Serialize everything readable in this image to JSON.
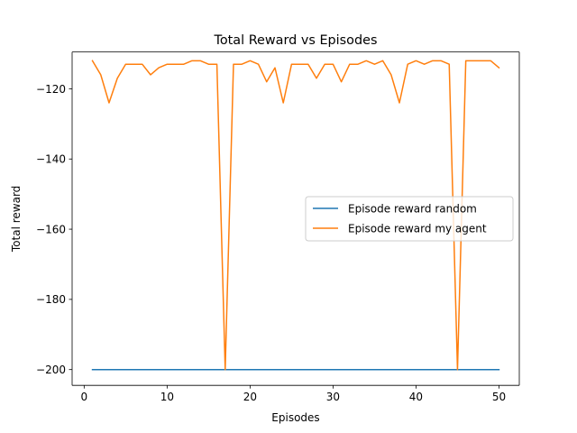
{
  "chart_data": {
    "type": "line",
    "title": "Total Reward vs Episodes",
    "xlabel": "Episodes",
    "ylabel": "Total reward",
    "xlim": [
      -1.45,
      52.45
    ],
    "ylim": [
      -204.5,
      -109.5
    ],
    "xticks": [
      0,
      10,
      20,
      30,
      40,
      50
    ],
    "xtick_labels": [
      "0",
      "10",
      "20",
      "30",
      "40",
      "50"
    ],
    "yticks": [
      -200,
      -180,
      -160,
      -140,
      -120
    ],
    "ytick_labels": [
      "−200",
      "−180",
      "−160",
      "−140",
      "−120"
    ],
    "grid": false,
    "legend_position": "center-right",
    "x": [
      1,
      2,
      3,
      4,
      5,
      6,
      7,
      8,
      9,
      10,
      11,
      12,
      13,
      14,
      15,
      16,
      17,
      18,
      19,
      20,
      21,
      22,
      23,
      24,
      25,
      26,
      27,
      28,
      29,
      30,
      31,
      32,
      33,
      34,
      35,
      36,
      37,
      38,
      39,
      40,
      41,
      42,
      43,
      44,
      45,
      46,
      47,
      48,
      49,
      50
    ],
    "series": [
      {
        "name": "Episode reward random",
        "color": "#1f77b4",
        "values": [
          -200,
          -200,
          -200,
          -200,
          -200,
          -200,
          -200,
          -200,
          -200,
          -200,
          -200,
          -200,
          -200,
          -200,
          -200,
          -200,
          -200,
          -200,
          -200,
          -200,
          -200,
          -200,
          -200,
          -200,
          -200,
          -200,
          -200,
          -200,
          -200,
          -200,
          -200,
          -200,
          -200,
          -200,
          -200,
          -200,
          -200,
          -200,
          -200,
          -200,
          -200,
          -200,
          -200,
          -200,
          -200,
          -200,
          -200,
          -200,
          -200,
          -200
        ]
      },
      {
        "name": "Episode reward my agent",
        "color": "#ff7f0e",
        "values": [
          -112,
          -116,
          -124,
          -117,
          -113,
          -113,
          -113,
          -116,
          -114,
          -113,
          -113,
          -113,
          -112,
          -112,
          -113,
          -113,
          -200,
          -113,
          -113,
          -112,
          -113,
          -118,
          -114,
          -124,
          -113,
          -113,
          -113,
          -117,
          -113,
          -113,
          -118,
          -113,
          -113,
          -112,
          -113,
          -112,
          -116,
          -124,
          -113,
          -112,
          -113,
          -112,
          -112,
          -113,
          -200,
          -112,
          -112,
          -112,
          -112,
          -114
        ]
      }
    ]
  }
}
